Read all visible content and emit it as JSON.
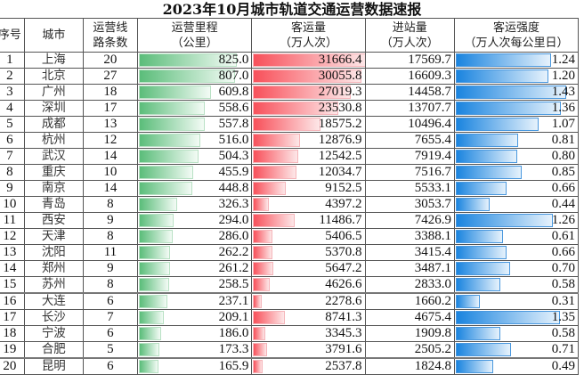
{
  "title": "2023年10月城市轨道交通运营数据速报",
  "headers": {
    "seq": "序号",
    "city": "城市",
    "lines_1": "运营线",
    "lines_2": "路条数",
    "mileage_1": "运营里程",
    "mileage_2": "（公里）",
    "passengers_1": "客运量",
    "passengers_2": "（万人次）",
    "entries_1": "进站量",
    "entries_2": "（万人次）",
    "intensity_1": "客运强度",
    "intensity_2": "（万人次每公里日）"
  },
  "colors": {
    "mileage_bar": "#5bbd7a",
    "passenger_bar": "#f8505a",
    "intensity_bar": "#1a84df"
  },
  "rows": [
    {
      "seq": "1",
      "city": "上海",
      "lines": "20",
      "mileage": "825.0",
      "passengers": "31666.4",
      "entries": "17569.7",
      "intensity": "1.24"
    },
    {
      "seq": "2",
      "city": "北京",
      "lines": "27",
      "mileage": "807.0",
      "passengers": "30055.8",
      "entries": "16609.3",
      "intensity": "1.20"
    },
    {
      "seq": "3",
      "city": "广州",
      "lines": "18",
      "mileage": "609.8",
      "passengers": "27019.3",
      "entries": "14458.7",
      "intensity": "1.43"
    },
    {
      "seq": "4",
      "city": "深圳",
      "lines": "17",
      "mileage": "558.6",
      "passengers": "23530.8",
      "entries": "13707.7",
      "intensity": "1.36"
    },
    {
      "seq": "5",
      "city": "成都",
      "lines": "13",
      "mileage": "557.8",
      "passengers": "18575.2",
      "entries": "10496.4",
      "intensity": "1.07"
    },
    {
      "seq": "6",
      "city": "杭州",
      "lines": "12",
      "mileage": "516.0",
      "passengers": "12876.9",
      "entries": "7655.4",
      "intensity": "0.81"
    },
    {
      "seq": "7",
      "city": "武汉",
      "lines": "14",
      "mileage": "504.3",
      "passengers": "12542.5",
      "entries": "7919.4",
      "intensity": "0.80"
    },
    {
      "seq": "8",
      "city": "重庆",
      "lines": "10",
      "mileage": "455.9",
      "passengers": "12034.7",
      "entries": "7516.7",
      "intensity": "0.85"
    },
    {
      "seq": "9",
      "city": "南京",
      "lines": "14",
      "mileage": "448.8",
      "passengers": "9152.5",
      "entries": "5533.1",
      "intensity": "0.66"
    },
    {
      "seq": "10",
      "city": "青岛",
      "lines": "8",
      "mileage": "326.3",
      "passengers": "4397.2",
      "entries": "3053.7",
      "intensity": "0.44"
    },
    {
      "seq": "11",
      "city": "西安",
      "lines": "9",
      "mileage": "294.0",
      "passengers": "11486.7",
      "entries": "7426.9",
      "intensity": "1.26"
    },
    {
      "seq": "12",
      "city": "天津",
      "lines": "8",
      "mileage": "286.0",
      "passengers": "5406.5",
      "entries": "3388.1",
      "intensity": "0.61"
    },
    {
      "seq": "13",
      "city": "沈阳",
      "lines": "11",
      "mileage": "262.2",
      "passengers": "5370.8",
      "entries": "3415.4",
      "intensity": "0.66"
    },
    {
      "seq": "14",
      "city": "郑州",
      "lines": "9",
      "mileage": "261.2",
      "passengers": "5647.2",
      "entries": "3487.1",
      "intensity": "0.70"
    },
    {
      "seq": "15",
      "city": "苏州",
      "lines": "8",
      "mileage": "258.5",
      "passengers": "4626.6",
      "entries": "2833.0",
      "intensity": "0.58"
    },
    {
      "seq": "16",
      "city": "大连",
      "lines": "6",
      "mileage": "237.1",
      "passengers": "2278.6",
      "entries": "1660.2",
      "intensity": "0.31"
    },
    {
      "seq": "17",
      "city": "长沙",
      "lines": "7",
      "mileage": "209.1",
      "passengers": "8741.3",
      "entries": "4675.4",
      "intensity": "1.35"
    },
    {
      "seq": "18",
      "city": "宁波",
      "lines": "6",
      "mileage": "186.0",
      "passengers": "3345.3",
      "entries": "1909.8",
      "intensity": "0.58"
    },
    {
      "seq": "19",
      "city": "合肥",
      "lines": "5",
      "mileage": "173.3",
      "passengers": "3791.6",
      "entries": "2505.2",
      "intensity": "0.71"
    },
    {
      "seq": "20",
      "city": "昆明",
      "lines": "6",
      "mileage": "165.9",
      "passengers": "2537.8",
      "entries": "1824.8",
      "intensity": "0.49"
    }
  ]
}
